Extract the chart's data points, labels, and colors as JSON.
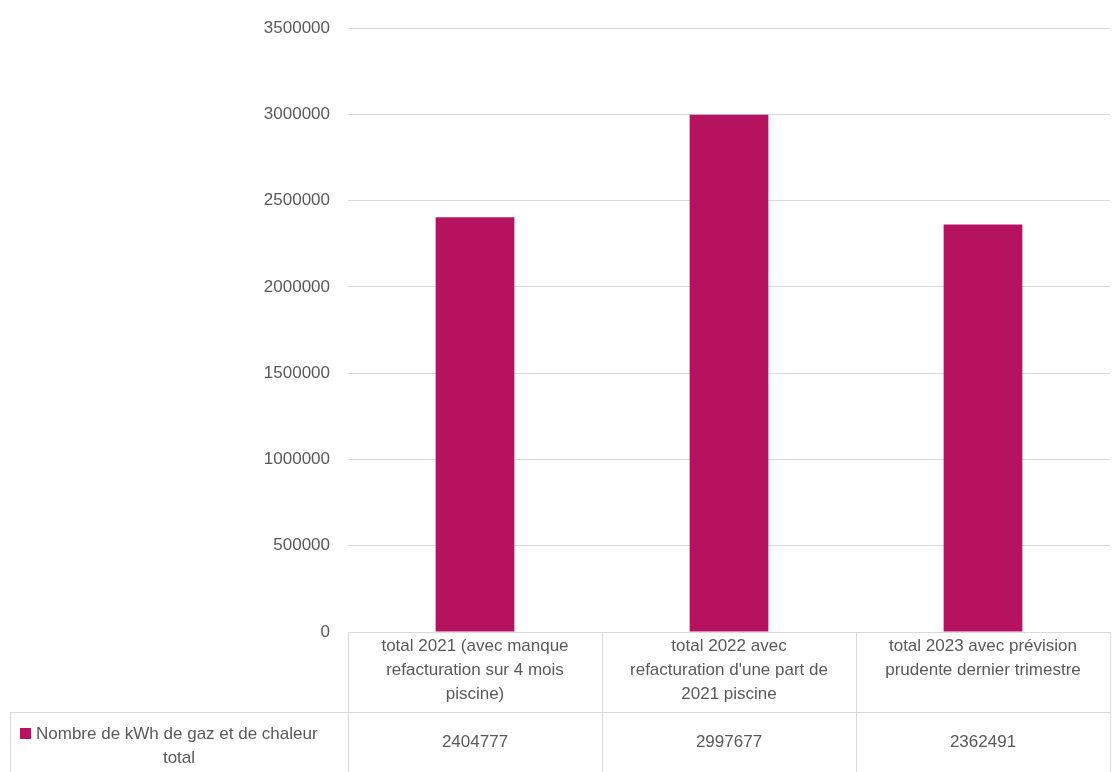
{
  "chart_data": {
    "type": "bar",
    "categories": [
      "total 2021 (avec manque refacturation sur 4 mois piscine)",
      "total 2022 avec refacturation d'une part de 2021 piscine",
      "total 2023 avec prévision prudente dernier trimestre"
    ],
    "series": [
      {
        "name": "Nombre de kWh de gaz et de chaleur total",
        "color": "#b5135f",
        "values": [
          2404777,
          2997677,
          2362491
        ]
      }
    ],
    "ylim": [
      0,
      3500000
    ],
    "yticks": [
      0,
      500000,
      1000000,
      1500000,
      2000000,
      2500000,
      3000000,
      3500000
    ],
    "grid": "y",
    "legend": "bottom",
    "data_labels": true
  }
}
